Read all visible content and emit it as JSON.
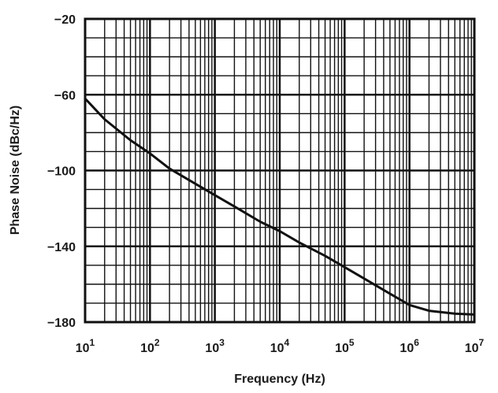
{
  "chart_data": {
    "type": "line",
    "xlabel": "Frequency (Hz)",
    "ylabel": "Phase Noise (dBc/Hz)",
    "x_scale": "log",
    "xlim": [
      10,
      10000000
    ],
    "ylim": [
      -180,
      -20
    ],
    "grid": true,
    "x_ticks": [
      {
        "base": "10",
        "exp": "1"
      },
      {
        "base": "10",
        "exp": "2"
      },
      {
        "base": "10",
        "exp": "3"
      },
      {
        "base": "10",
        "exp": "4"
      },
      {
        "base": "10",
        "exp": "5"
      },
      {
        "base": "10",
        "exp": "6"
      },
      {
        "base": "10",
        "exp": "7"
      }
    ],
    "y_ticks": [
      "-20",
      "-60",
      "-100",
      "-140",
      "-180"
    ],
    "series": [
      {
        "color": "#111111",
        "points": [
          [
            10,
            -62
          ],
          [
            20,
            -73
          ],
          [
            50,
            -84
          ],
          [
            100,
            -91
          ],
          [
            200,
            -99
          ],
          [
            500,
            -107
          ],
          [
            1000,
            -113
          ],
          [
            2000,
            -119
          ],
          [
            5000,
            -127
          ],
          [
            10000,
            -132
          ],
          [
            20000,
            -138
          ],
          [
            50000,
            -145
          ],
          [
            100000,
            -151
          ],
          [
            200000,
            -157
          ],
          [
            500000,
            -165
          ],
          [
            1000000,
            -171
          ],
          [
            2000000,
            -174
          ],
          [
            5000000,
            -175.5
          ],
          [
            10000000,
            -176
          ]
        ]
      }
    ]
  }
}
